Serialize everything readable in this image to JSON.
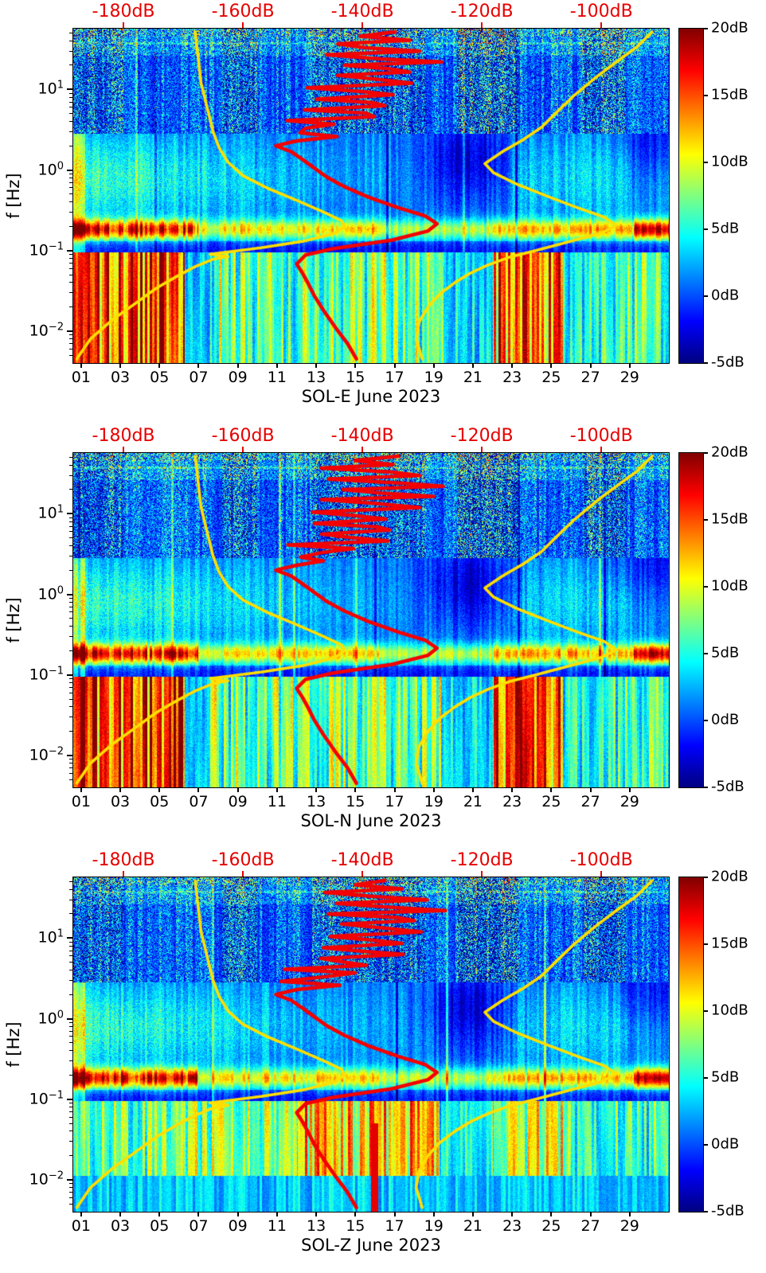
{
  "chart_data": {
    "type": "heatmap",
    "subtype": "seismic-spectrogram",
    "description": "Three stacked day-vs-frequency PSD spectrograms (jet colormap) for station SOL components E, N and Z during June 2023. A red median-PSD curve and two yellow noise-model curves are overlaid, read against the red dB axis on top.",
    "panels": [
      {
        "component": "E",
        "title": "SOL-E June 2023",
        "seed": 11
      },
      {
        "component": "N",
        "title": "SOL-N June 2023",
        "seed": 29
      },
      {
        "component": "Z",
        "title": "SOL-Z June 2023",
        "seed": 47
      }
    ],
    "x_axis": {
      "tick_labels": [
        "01",
        "03",
        "05",
        "07",
        "09",
        "11",
        "13",
        "15",
        "17",
        "19",
        "21",
        "23",
        "25",
        "27",
        "29"
      ],
      "tick_values_day": [
        1,
        3,
        5,
        7,
        9,
        11,
        13,
        15,
        17,
        19,
        21,
        23,
        25,
        27,
        29
      ],
      "range_days": [
        0.6,
        31
      ]
    },
    "y_axis": {
      "label": "f [Hz]",
      "scale": "log",
      "tick_exponents": [
        1,
        0,
        -1,
        -2
      ],
      "range_hz": [
        0.004,
        57
      ]
    },
    "top_axis": {
      "color": "#e60000",
      "tick_labels": [
        "-180dB",
        "-160dB",
        "-140dB",
        "-120dB",
        "-100dB"
      ],
      "tick_values_db": [
        -180,
        -160,
        -140,
        -120,
        -100
      ],
      "range_db": [
        -188.4,
        -88.7
      ]
    },
    "colorbar": {
      "colormap": "jet",
      "tick_labels": [
        "20dB",
        "15dB",
        "10dB",
        "5dB",
        "0dB",
        "-5dB"
      ],
      "tick_values_db": [
        20,
        15,
        10,
        5,
        0,
        -5
      ],
      "range_db": [
        -5,
        20
      ]
    },
    "overlays": {
      "median_psd_red": {
        "color": "#f40000",
        "points_db_hz": [
          [
            -136,
            52
          ],
          [
            -142,
            46
          ],
          [
            -133,
            41
          ],
          [
            -146,
            37
          ],
          [
            -137,
            33
          ],
          [
            -130,
            30
          ],
          [
            -145,
            27
          ],
          [
            -135,
            24
          ],
          [
            -128,
            22
          ],
          [
            -144,
            20
          ],
          [
            -136,
            18
          ],
          [
            -130.5,
            16.5
          ],
          [
            -146,
            15
          ],
          [
            -138,
            13.5
          ],
          [
            -132,
            12
          ],
          [
            -147,
            10.5
          ],
          [
            -139,
            9.5
          ],
          [
            -134,
            8.6
          ],
          [
            -148,
            7.6
          ],
          [
            -140,
            6.9
          ],
          [
            -135,
            6.3
          ],
          [
            -149,
            5.6
          ],
          [
            -141,
            5.1
          ],
          [
            -137,
            4.6
          ],
          [
            -151,
            4.1
          ],
          [
            -143,
            3.7
          ],
          [
            -148,
            3.3
          ],
          [
            -152,
            2.9
          ],
          [
            -146,
            2.6
          ],
          [
            -151,
            2.3
          ],
          [
            -154.5,
            2.0
          ],
          [
            -152,
            1.7
          ],
          [
            -150,
            1.35
          ],
          [
            -148,
            1.05
          ],
          [
            -146,
            0.82
          ],
          [
            -143,
            0.62
          ],
          [
            -139,
            0.46
          ],
          [
            -134,
            0.34
          ],
          [
            -129.5,
            0.27
          ],
          [
            -127.5,
            0.215
          ],
          [
            -129,
            0.175
          ],
          [
            -135,
            0.135
          ],
          [
            -145,
            0.105
          ],
          [
            -149.5,
            0.088
          ],
          [
            -151,
            0.068
          ],
          [
            -150,
            0.052
          ],
          [
            -149,
            0.038
          ],
          [
            -148,
            0.027
          ],
          [
            -146.5,
            0.018
          ],
          [
            -144.5,
            0.011
          ],
          [
            -142.5,
            0.007
          ],
          [
            -141,
            0.0045
          ]
        ]
      },
      "low_noise_model_yellow": {
        "color": "#ffdf00",
        "points_db_hz": [
          [
            -168,
            52
          ],
          [
            -167.5,
            25
          ],
          [
            -167,
            12
          ],
          [
            -166,
            6
          ],
          [
            -165,
            3
          ],
          [
            -164,
            1.9
          ],
          [
            -162.5,
            1.25
          ],
          [
            -160,
            0.85
          ],
          [
            -156,
            0.6
          ],
          [
            -151,
            0.42
          ],
          [
            -146.5,
            0.3
          ],
          [
            -143.5,
            0.235
          ],
          [
            -143,
            0.2
          ],
          [
            -144.5,
            0.165
          ],
          [
            -150,
            0.13
          ],
          [
            -157,
            0.108
          ],
          [
            -162,
            0.097
          ],
          [
            -165.5,
            0.09
          ],
          [
            -162.5,
            0.084
          ],
          [
            -165,
            0.078
          ],
          [
            -168,
            0.063
          ],
          [
            -171,
            0.048
          ],
          [
            -174.5,
            0.034
          ],
          [
            -178,
            0.022
          ],
          [
            -182,
            0.0135
          ],
          [
            -185.5,
            0.008
          ],
          [
            -187.8,
            0.0045
          ]
        ]
      },
      "high_noise_model_yellow": {
        "color": "#ffdf00",
        "points_db_hz": [
          [
            -91.5,
            52
          ],
          [
            -94,
            34
          ],
          [
            -97.5,
            22
          ],
          [
            -101,
            14
          ],
          [
            -104.5,
            8.5
          ],
          [
            -107.5,
            5.2
          ],
          [
            -110,
            3.4
          ],
          [
            -113,
            2.4
          ],
          [
            -116.5,
            1.7
          ],
          [
            -119.5,
            1.2
          ],
          [
            -118,
            0.92
          ],
          [
            -114,
            0.66
          ],
          [
            -109,
            0.47
          ],
          [
            -104,
            0.34
          ],
          [
            -99.5,
            0.26
          ],
          [
            -97.5,
            0.205
          ],
          [
            -100,
            0.165
          ],
          [
            -105.5,
            0.128
          ],
          [
            -111,
            0.1
          ],
          [
            -115.5,
            0.082
          ],
          [
            -119,
            0.066
          ],
          [
            -122,
            0.052
          ],
          [
            -124.5,
            0.04
          ],
          [
            -127,
            0.029
          ],
          [
            -129,
            0.02
          ],
          [
            -130.5,
            0.013
          ],
          [
            -131,
            0.008
          ],
          [
            -130,
            0.0045
          ]
        ]
      }
    }
  }
}
